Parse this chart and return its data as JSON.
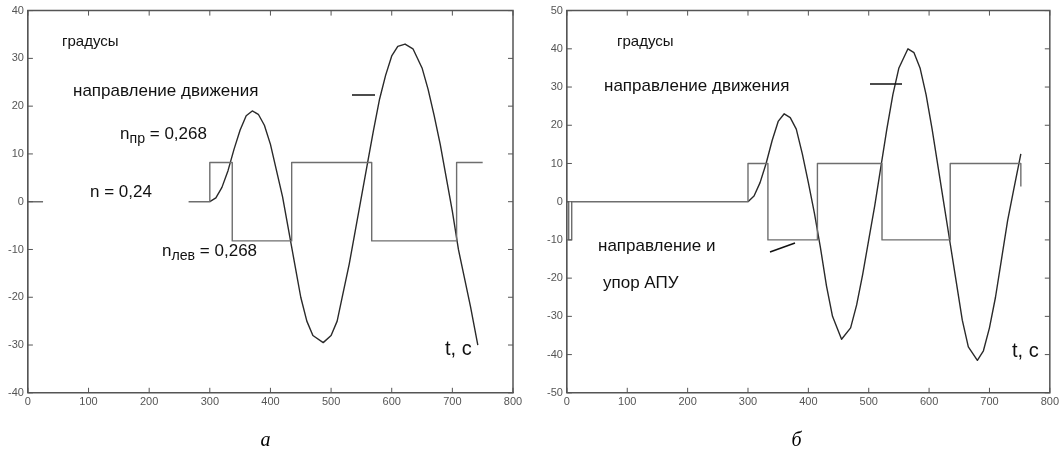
{
  "chart_data": [
    {
      "type": "line",
      "title": "а",
      "xlabel": "t, с",
      "annotations": [
        "градусы",
        "направление движения",
        "n$_{пр}$ = 0,268",
        "n = 0,24",
        "n$_{лев}$ = 0,268"
      ],
      "xlim": [
        0,
        800
      ],
      "xticks": [
        0,
        100,
        200,
        300,
        400,
        500,
        600,
        700,
        800
      ],
      "ylim": [
        -40,
        40
      ],
      "yticks": [
        -40,
        -30,
        -20,
        -10,
        0,
        10,
        20,
        30,
        40
      ],
      "grid": false,
      "legend": false,
      "marker": "none",
      "line_style": "solid",
      "series": [
        {
          "type": "step",
          "color": "#6e6e6e",
          "x": [
            0,
            25,
            26,
            265,
            300,
            337,
            435,
            567,
            707,
            750
          ],
          "values": [
            0,
            0,
            null,
            0,
            8.2,
            -8.2,
            8.2,
            -8.2,
            8.2,
            8.2
          ]
        },
        {
          "type": "line",
          "color": "#2a2a2a",
          "x": [
            300,
            310,
            320,
            330,
            340,
            350,
            360,
            370,
            380,
            390,
            400,
            410,
            420,
            430,
            440,
            450,
            460,
            470,
            487,
            500,
            510,
            520,
            530,
            540,
            550,
            560,
            570,
            580,
            590,
            600,
            610,
            622,
            635,
            650,
            660,
            670,
            680,
            690,
            700,
            710,
            720,
            730,
            742
          ],
          "values": [
            0,
            0.8,
            3,
            6.5,
            11,
            15,
            18,
            19,
            18.3,
            16,
            12,
            6.5,
            1,
            -6,
            -13,
            -20,
            -25,
            -28,
            -29.5,
            -28,
            -25,
            -19,
            -13,
            -6,
            1,
            8,
            15,
            21.5,
            26.5,
            30.5,
            32.5,
            33,
            32,
            28,
            23.5,
            18,
            12,
            5,
            -2,
            -10,
            -16,
            -22,
            -30
          ]
        }
      ]
    },
    {
      "type": "line",
      "title": "б",
      "xlabel": "t, с",
      "annotations": [
        "градусы",
        "направление движения",
        "направление и",
        "упор АПУ"
      ],
      "xlim": [
        0,
        800
      ],
      "xticks": [
        0,
        100,
        200,
        300,
        400,
        500,
        600,
        700,
        800
      ],
      "ylim": [
        -50,
        50
      ],
      "yticks": [
        -50,
        -40,
        -30,
        -20,
        -10,
        0,
        10,
        20,
        30,
        40,
        50
      ],
      "grid": false,
      "legend": false,
      "marker": "none",
      "line_style": "solid",
      "series": [
        {
          "type": "step",
          "color": "#6e6e6e",
          "x": [
            0,
            3,
            8,
            300,
            333,
            415,
            522,
            635,
            750,
            752
          ],
          "values": [
            0,
            -10,
            0,
            10,
            -10,
            10,
            -10,
            10,
            10,
            4
          ]
        },
        {
          "type": "line",
          "color": "#2a2a2a",
          "x": [
            300,
            310,
            320,
            330,
            340,
            350,
            360,
            370,
            380,
            390,
            400,
            410,
            420,
            430,
            440,
            455,
            470,
            480,
            490,
            500,
            510,
            520,
            530,
            540,
            550,
            565,
            575,
            585,
            595,
            605,
            615,
            625,
            635,
            645,
            655,
            665,
            680,
            690,
            700,
            710,
            720,
            730,
            740,
            752
          ],
          "values": [
            0,
            1.5,
            5,
            10,
            16,
            21,
            23,
            22,
            19,
            12.5,
            5,
            -3,
            -12,
            -22,
            -30,
            -36,
            -33,
            -27,
            -19,
            -10,
            -1,
            9,
            19,
            28,
            35,
            40,
            39,
            35,
            28,
            19,
            9,
            -1,
            -11,
            -21,
            -31,
            -38,
            -41.5,
            -39,
            -33,
            -25,
            -15,
            -5,
            3,
            12.5
          ]
        }
      ]
    }
  ]
}
